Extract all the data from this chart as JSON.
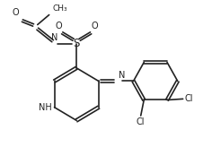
{
  "background_color": "#ffffff",
  "line_color": "#222222",
  "line_width": 1.2,
  "font_size": 7.0,
  "figsize": [
    2.36,
    1.74
  ],
  "dpi": 100,
  "xlim": [
    0,
    10
  ],
  "ylim": [
    0,
    7.4
  ]
}
